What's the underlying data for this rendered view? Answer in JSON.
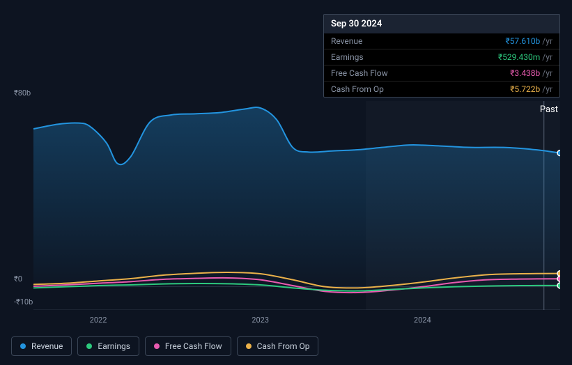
{
  "tooltip": {
    "date": "Sep 30 2024",
    "rows": [
      {
        "label": "Revenue",
        "value": "₹57.610b",
        "unit": "/yr",
        "color": "#2394df"
      },
      {
        "label": "Earnings",
        "value": "₹529.430m",
        "unit": "/yr",
        "color": "#2dc97e"
      },
      {
        "label": "Free Cash Flow",
        "value": "₹3.438b",
        "unit": "/yr",
        "color": "#e85bb0"
      },
      {
        "label": "Cash From Op",
        "value": "₹5.722b",
        "unit": "/yr",
        "color": "#eab14a"
      }
    ]
  },
  "chart": {
    "past_label": "Past",
    "ylim": [
      -10,
      80
    ],
    "yticks": [
      {
        "label": "₹80b",
        "v": 80
      },
      {
        "label": "₹0",
        "v": 0
      },
      {
        "label": "-₹10b",
        "v": -10
      }
    ],
    "xlim": [
      2021.6,
      2024.85
    ],
    "xticks": [
      {
        "label": "2022",
        "v": 2022
      },
      {
        "label": "2023",
        "v": 2023
      },
      {
        "label": "2024",
        "v": 2024
      }
    ],
    "highlight_x": 2024.75,
    "past_shade_from": 2023.65,
    "background": "#0d1421",
    "grid": "#2a3444",
    "series": [
      {
        "name": "Revenue",
        "color": "#2394df",
        "area": true,
        "points": [
          [
            2021.6,
            68
          ],
          [
            2021.75,
            70
          ],
          [
            2021.88,
            70.5
          ],
          [
            2021.95,
            69
          ],
          [
            2022.05,
            62
          ],
          [
            2022.12,
            53
          ],
          [
            2022.2,
            56
          ],
          [
            2022.32,
            71
          ],
          [
            2022.45,
            74
          ],
          [
            2022.6,
            74.5
          ],
          [
            2022.75,
            75
          ],
          [
            2022.9,
            76.5
          ],
          [
            2023.0,
            77
          ],
          [
            2023.1,
            72
          ],
          [
            2023.2,
            60
          ],
          [
            2023.3,
            58
          ],
          [
            2023.45,
            58.5
          ],
          [
            2023.6,
            59
          ],
          [
            2023.75,
            60
          ],
          [
            2023.9,
            61
          ],
          [
            2024.0,
            61
          ],
          [
            2024.15,
            60.5
          ],
          [
            2024.3,
            60
          ],
          [
            2024.5,
            60
          ],
          [
            2024.7,
            59
          ],
          [
            2024.85,
            57.6
          ]
        ]
      },
      {
        "name": "Cash From Op",
        "color": "#eab14a",
        "area": false,
        "points": [
          [
            2021.6,
            1.0
          ],
          [
            2021.8,
            1.5
          ],
          [
            2022.0,
            2.5
          ],
          [
            2022.2,
            3.5
          ],
          [
            2022.4,
            5.0
          ],
          [
            2022.6,
            5.8
          ],
          [
            2022.8,
            6.2
          ],
          [
            2023.0,
            5.6
          ],
          [
            2023.2,
            3.0
          ],
          [
            2023.4,
            0
          ],
          [
            2023.6,
            -0.5
          ],
          [
            2023.8,
            0.5
          ],
          [
            2024.0,
            2.0
          ],
          [
            2024.2,
            3.8
          ],
          [
            2024.4,
            5.2
          ],
          [
            2024.6,
            5.6
          ],
          [
            2024.85,
            5.72
          ]
        ]
      },
      {
        "name": "Free Cash Flow",
        "color": "#e85bb0",
        "area": false,
        "points": [
          [
            2021.6,
            0.2
          ],
          [
            2021.8,
            0.8
          ],
          [
            2022.0,
            1.5
          ],
          [
            2022.2,
            2.2
          ],
          [
            2022.4,
            3.2
          ],
          [
            2022.6,
            3.6
          ],
          [
            2022.8,
            3.8
          ],
          [
            2023.0,
            3.0
          ],
          [
            2023.2,
            0.5
          ],
          [
            2023.4,
            -2.0
          ],
          [
            2023.6,
            -2.5
          ],
          [
            2023.8,
            -1.5
          ],
          [
            2024.0,
            0.0
          ],
          [
            2024.2,
            1.8
          ],
          [
            2024.4,
            3.0
          ],
          [
            2024.6,
            3.3
          ],
          [
            2024.85,
            3.44
          ]
        ]
      },
      {
        "name": "Earnings",
        "color": "#2dc97e",
        "area": false,
        "points": [
          [
            2021.6,
            -0.5
          ],
          [
            2021.8,
            0.0
          ],
          [
            2022.0,
            0.5
          ],
          [
            2022.2,
            0.8
          ],
          [
            2022.4,
            1.2
          ],
          [
            2022.6,
            1.4
          ],
          [
            2022.8,
            1.3
          ],
          [
            2023.0,
            0.8
          ],
          [
            2023.2,
            -0.5
          ],
          [
            2023.4,
            -1.5
          ],
          [
            2023.6,
            -1.8
          ],
          [
            2023.8,
            -1.2
          ],
          [
            2024.0,
            -0.5
          ],
          [
            2024.2,
            0.0
          ],
          [
            2024.4,
            0.3
          ],
          [
            2024.6,
            0.5
          ],
          [
            2024.85,
            0.53
          ]
        ]
      }
    ]
  },
  "legend": [
    {
      "name": "Revenue",
      "color": "#2394df"
    },
    {
      "name": "Earnings",
      "color": "#2dc97e"
    },
    {
      "name": "Free Cash Flow",
      "color": "#e85bb0"
    },
    {
      "name": "Cash From Op",
      "color": "#eab14a"
    }
  ]
}
